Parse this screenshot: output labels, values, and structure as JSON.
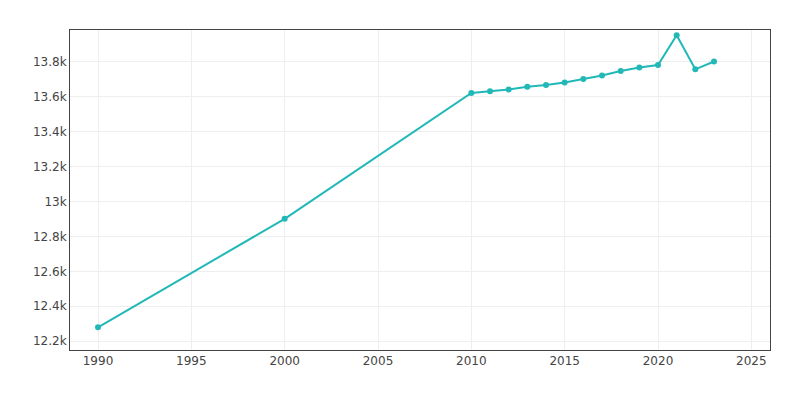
{
  "chart_data": {
    "type": "line",
    "x": [
      1990,
      2000,
      2010,
      2011,
      2012,
      2013,
      2014,
      2015,
      2016,
      2017,
      2018,
      2019,
      2020,
      2021,
      2022,
      2023
    ],
    "values": [
      12280,
      12900,
      13620,
      13630,
      13640,
      13655,
      13665,
      13680,
      13700,
      13720,
      13745,
      13765,
      13780,
      13950,
      13755,
      13800
    ],
    "color": "#22b8b8",
    "marker": "circle",
    "xlim": [
      1988.5,
      2026
    ],
    "xticks": [
      1990,
      1995,
      2000,
      2005,
      2010,
      2015,
      2020,
      2025
    ],
    "ylim": [
      12150,
      13980
    ],
    "yticks": [
      {
        "value": 12200,
        "label": "12.2k"
      },
      {
        "value": 12400,
        "label": "12.4k"
      },
      {
        "value": 12600,
        "label": "12.6k"
      },
      {
        "value": 12800,
        "label": "12.8k"
      },
      {
        "value": 13000,
        "label": "13k"
      },
      {
        "value": 13200,
        "label": "13.2k"
      },
      {
        "value": 13400,
        "label": "13.4k"
      },
      {
        "value": 13600,
        "label": "13.6k"
      },
      {
        "value": 13800,
        "label": "13.8k"
      }
    ],
    "grid": true
  }
}
